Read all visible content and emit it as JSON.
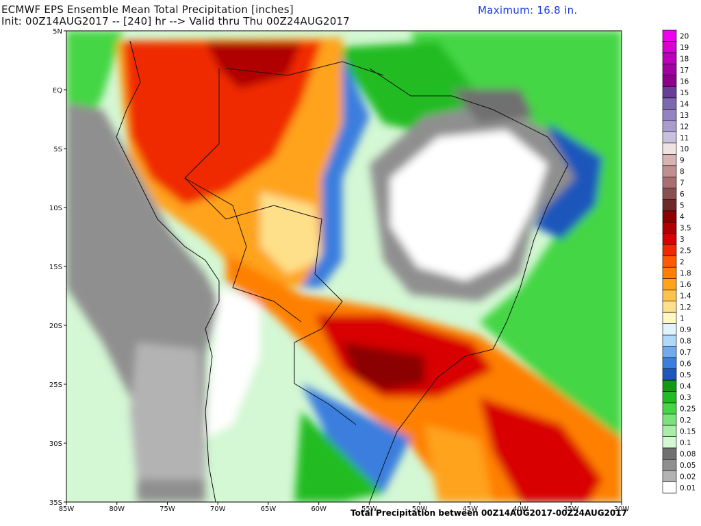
{
  "title": {
    "line1": "ECMWF EPS Ensemble Mean Total Precipitation [inches]",
    "line2": "Init: 00Z14AUG2017 -- [240] hr --> Valid thru Thu 00Z24AUG2017",
    "maximum": "Maximum: 16.8 in."
  },
  "footer": "Total Precipitation between 00Z14AUG2017-00Z24AUG2017",
  "lon_ticks": [
    "85W",
    "80W",
    "75W",
    "70W",
    "65W",
    "60W",
    "55W",
    "50W",
    "45W",
    "40W",
    "35W",
    "30W"
  ],
  "lat_ticks": [
    "5N",
    "EQ",
    "5S",
    "10S",
    "15S",
    "20S",
    "25S",
    "30S",
    "35S"
  ],
  "colorbar": {
    "levels": [
      "20",
      "19",
      "18",
      "17",
      "16",
      "15",
      "14",
      "13",
      "12",
      "11",
      "10",
      "9",
      "8",
      "7",
      "6",
      "5",
      "4",
      "3.5",
      "3",
      "2.5",
      "2",
      "1.8",
      "1.6",
      "1.4",
      "1.2",
      "1",
      "0.9",
      "0.8",
      "0.7",
      "0.6",
      "0.5",
      "0.4",
      "0.3",
      "0.25",
      "0.2",
      "0.15",
      "0.1",
      "0.08",
      "0.05",
      "0.02",
      "0.01"
    ],
    "colors": [
      "#ee00ee",
      "#d600d6",
      "#bb00bb",
      "#a300a3",
      "#8c008c",
      "#6a3d9a",
      "#7b68ae",
      "#9582c0",
      "#a99bcb",
      "#c9c0dd",
      "#f0e2e2",
      "#d8b3b3",
      "#c09090",
      "#a87070",
      "#8a5050",
      "#6e2a2a",
      "#8b0000",
      "#b00000",
      "#d80000",
      "#f02a00",
      "#ff5a00",
      "#ff8000",
      "#ffa31a",
      "#ffc24d",
      "#ffe08a",
      "#fff8c2",
      "#e0f3ff",
      "#b0d8f8",
      "#72aaee",
      "#3a7ede",
      "#1e56bb",
      "#129a12",
      "#22bc22",
      "#44d644",
      "#7ae47a",
      "#a8eea8",
      "#d4f7d4",
      "#707070",
      "#8f8f8f",
      "#b3b3b3",
      "#ffffff"
    ]
  },
  "map": {
    "region": "South America",
    "lon_range": [
      "85W",
      "30W"
    ],
    "lat_range": [
      "35S",
      "5N"
    ],
    "regions": [
      {
        "name": "background-light-green",
        "color": "#d4f7d4"
      },
      {
        "name": "ocean-green",
        "color": "#44d644"
      },
      {
        "name": "amazon-heavy-rain",
        "color": "#f02a00"
      },
      {
        "name": "southern-brazil-band",
        "color": "#d80000"
      },
      {
        "name": "southern-brazil-core",
        "color": "#8b0000"
      },
      {
        "name": "atlantic-plume",
        "color": "#ff5a00"
      },
      {
        "name": "northeast-brazil-dry",
        "color": "#ffffff"
      },
      {
        "name": "andes-dry",
        "color": "#8f8f8f"
      }
    ]
  }
}
